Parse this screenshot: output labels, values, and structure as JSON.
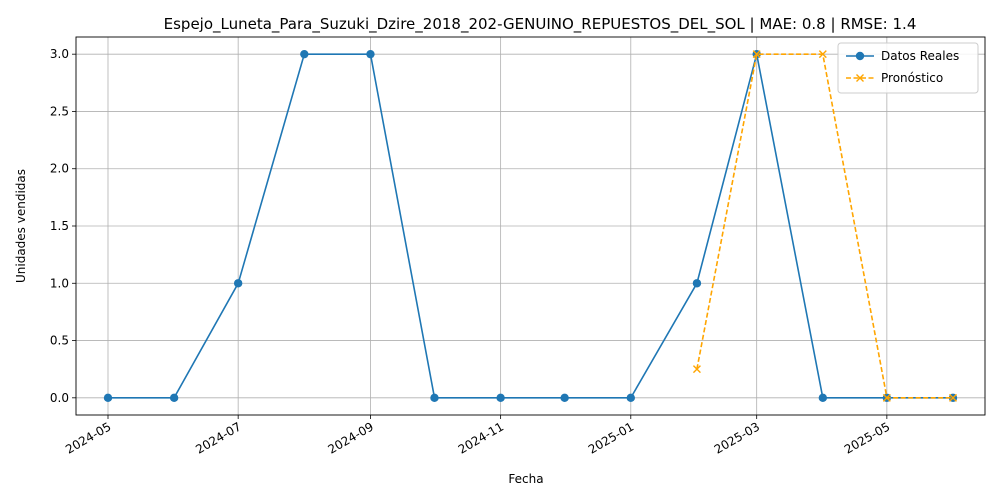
{
  "chart_data": {
    "type": "line",
    "title": "Espejo_Luneta_Para_Suzuki_Dzire_2018_202-GENUINO_REPUESTOS_DEL_SOL | MAE: 0.8 | RMSE: 1.4",
    "xlabel": "Fecha",
    "ylabel": "Unidades vendidas",
    "x_tick_labels": [
      "2024-05",
      "2024-07",
      "2024-09",
      "2024-11",
      "2025-01",
      "2025-03",
      "2025-05"
    ],
    "y_ticks": [
      "0.0",
      "0.5",
      "1.0",
      "1.5",
      "2.0",
      "2.5",
      "3.0"
    ],
    "ylim": [
      -0.15,
      3.15
    ],
    "grid": true,
    "legend_position": "top-right",
    "series": [
      {
        "name": "Datos Reales",
        "color": "#1f77b4",
        "style": "solid",
        "marker": "circle",
        "x": [
          "2024-05-01",
          "2024-06-01",
          "2024-07-01",
          "2024-08-01",
          "2024-09-01",
          "2024-10-01",
          "2024-11-01",
          "2024-12-01",
          "2025-01-01",
          "2025-02-01",
          "2025-03-01",
          "2025-04-01",
          "2025-05-01",
          "2025-06-01"
        ],
        "values": [
          0,
          0,
          1,
          3,
          3,
          0,
          0,
          0,
          0,
          1,
          3,
          0,
          0,
          0
        ]
      },
      {
        "name": "Pronóstico",
        "color": "#ffa500",
        "style": "dashed",
        "marker": "x",
        "x": [
          "2025-02-01",
          "2025-03-01",
          "2025-04-01",
          "2025-05-01",
          "2025-06-01"
        ],
        "values": [
          0.25,
          3,
          3,
          0,
          0
        ]
      }
    ]
  }
}
